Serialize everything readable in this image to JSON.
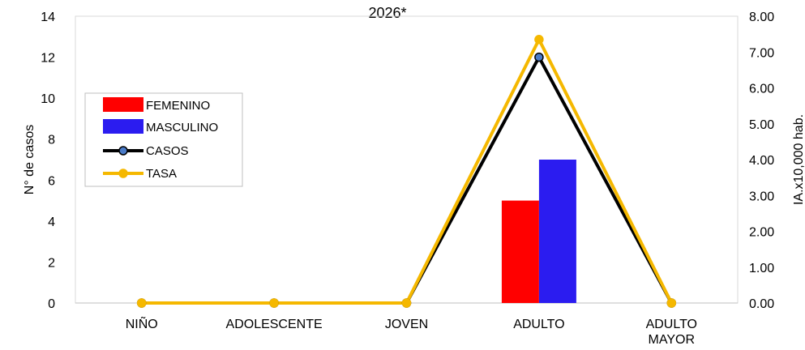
{
  "chart_data": {
    "type": "bar",
    "title_fragment": "2026*",
    "categories": [
      "NIÑO",
      "ADOLESCENTE",
      "JOVEN",
      "ADULTO",
      "ADULTO MAYOR"
    ],
    "ylabel": "N° de casos",
    "y2label": "IA.x10,000 hab.",
    "ylim": [
      0,
      14
    ],
    "yticks": [
      "0",
      "2",
      "4",
      "6",
      "8",
      "10",
      "12",
      "14"
    ],
    "y2lim": [
      0,
      8
    ],
    "y2ticks": [
      "0.00",
      "1.00",
      "2.00",
      "3.00",
      "4.00",
      "5.00",
      "6.00",
      "7.00",
      "8.00"
    ],
    "legend_position": "left",
    "series": [
      {
        "name": "FEMENINO",
        "kind": "bar",
        "axis": "left",
        "color": "#ff0000",
        "values": [
          0,
          0,
          0,
          5,
          0
        ]
      },
      {
        "name": "MASCULINO",
        "kind": "bar",
        "axis": "left",
        "color": "#2b1cf0",
        "values": [
          0,
          0,
          0,
          7,
          0
        ]
      },
      {
        "name": "CASOS",
        "kind": "line",
        "axis": "left",
        "color": "#000000",
        "marker_color": "#4a7bc8",
        "values": [
          0,
          0,
          0,
          12,
          0
        ]
      },
      {
        "name": "TASA",
        "kind": "line",
        "axis": "right",
        "color": "#f5b800",
        "marker_color": "#f5b800",
        "values": [
          0,
          0,
          0,
          7.35,
          0
        ]
      }
    ]
  }
}
